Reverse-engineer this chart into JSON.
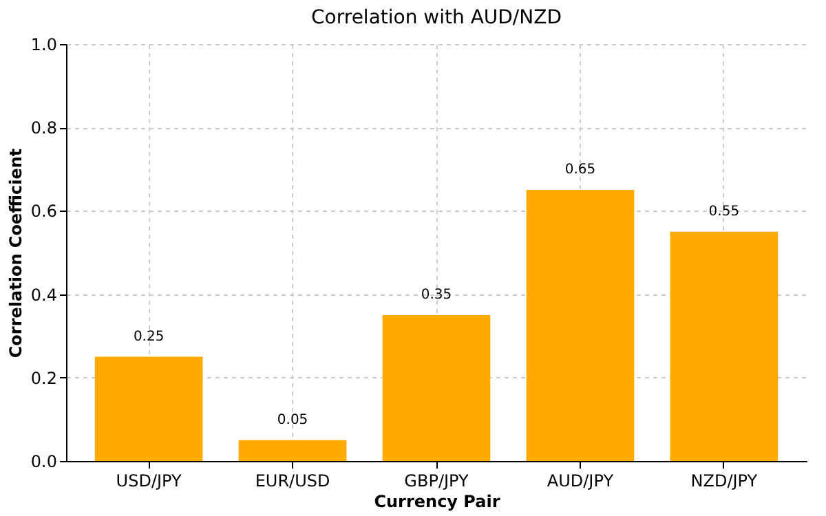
{
  "chart_data": {
    "type": "bar",
    "title": "Correlation with AUD/NZD",
    "xlabel": "Currency Pair",
    "ylabel": "Correlation Coefficient",
    "categories": [
      "USD/JPY",
      "EUR/USD",
      "GBP/JPY",
      "AUD/JPY",
      "NZD/JPY"
    ],
    "values": [
      0.25,
      0.05,
      0.35,
      0.65,
      0.55
    ],
    "color": "#ffaa00",
    "ylim": [
      0,
      1
    ],
    "yticks": [
      {
        "value": 0,
        "label": "0.0"
      },
      {
        "value": 0.2,
        "label": "0.2"
      },
      {
        "value": 0.4,
        "label": "0.4"
      },
      {
        "value": 0.6,
        "label": "0.6"
      },
      {
        "value": 0.8,
        "label": "0.8"
      },
      {
        "value": 1,
        "label": "1.0"
      }
    ],
    "grid": true,
    "data_labels": true
  }
}
